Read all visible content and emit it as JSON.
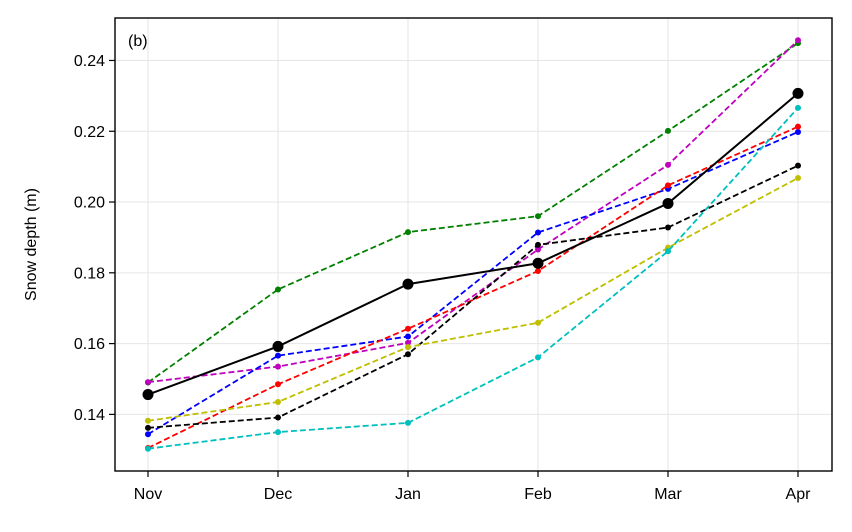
{
  "chart_data": {
    "type": "line",
    "panel_label": "(b)",
    "xlabel": "",
    "ylabel": "Snow depth (m)",
    "categories": [
      "Nov",
      "Dec",
      "Jan",
      "Feb",
      "Mar",
      "Apr"
    ],
    "ylim": [
      0.124,
      0.252
    ],
    "yticks": [
      0.14,
      0.16,
      0.18,
      0.2,
      0.22,
      0.24
    ],
    "ytick_labels": [
      "0.14",
      "0.16",
      "0.18",
      "0.20",
      "0.22",
      "0.24"
    ],
    "grid": true,
    "legend": "none",
    "series": [
      {
        "color": "#008000",
        "style": "dashed",
        "values": [
          0.149,
          0.1753,
          0.1915,
          0.196,
          0.2201,
          0.2449
        ]
      },
      {
        "color": "#bf00bf",
        "style": "dashed",
        "values": [
          0.1491,
          0.1535,
          0.1602,
          0.1866,
          0.2105,
          0.2457
        ]
      },
      {
        "color": "#0000ff",
        "style": "dashed",
        "values": [
          0.1344,
          0.1566,
          0.162,
          0.1914,
          0.2037,
          0.2198
        ]
      },
      {
        "color": "#ff0000",
        "style": "dashed",
        "values": [
          0.1305,
          0.1485,
          0.1642,
          0.1805,
          0.2047,
          0.2213
        ]
      },
      {
        "color": "#000000",
        "style": "dashed",
        "values": [
          0.1362,
          0.1391,
          0.157,
          0.1879,
          0.1928,
          0.2103
        ]
      },
      {
        "color": "#bfbf00",
        "style": "dashed",
        "values": [
          0.1382,
          0.1435,
          0.159,
          0.1659,
          0.1871,
          0.2068
        ]
      },
      {
        "color": "#00bfbf",
        "style": "dashed",
        "values": [
          0.1303,
          0.135,
          0.1376,
          0.1561,
          0.1861,
          0.2266
        ]
      },
      {
        "color": "#000000",
        "style": "solid",
        "values": [
          0.1456,
          0.1592,
          0.1768,
          0.1827,
          0.1996,
          0.2307
        ]
      }
    ]
  }
}
